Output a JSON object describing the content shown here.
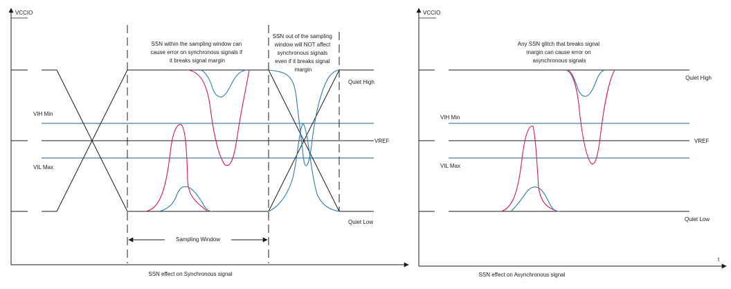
{
  "colors": {
    "axis": "#1a1a1a",
    "signal": "#1a1a1a",
    "threshold": "#1f5c8a",
    "glitch_red": "#d1185b",
    "glitch_blue": "#2a79b4"
  },
  "left_panel": {
    "y_axis_label": "VCCIO",
    "caption": "SSN effect on Synchronous signal",
    "note_inside_lines": [
      "SSN within the sampling window can",
      "cause error on synchronous signals if",
      "it breaks signal margin"
    ],
    "note_outside_lines": [
      "SSN out of the sampling",
      "window will NOT affect",
      "synchronous signals",
      "even if it breaks signal",
      "margin"
    ],
    "vih_label": "VIH Min",
    "vil_label": "VIL Max",
    "vref_label": "VREF",
    "quiet_high_label": "Quiet High",
    "quiet_low_label": "Quiet Low",
    "sampling_window_label": "Sampling Window"
  },
  "right_panel": {
    "y_axis_label": "VCCIO",
    "x_axis_label": "t",
    "caption": "SSN effect on Asynchronous signal",
    "note_lines": [
      "Any SSN glitch that breaks signal",
      "margin can cause error on",
      "asynchronous signals"
    ],
    "vih_label": "VIH Min",
    "vil_label": "VIL Max",
    "vref_label": "VREF",
    "quiet_high_label": "Quiet High",
    "quiet_low_label": "Quiet Low"
  }
}
